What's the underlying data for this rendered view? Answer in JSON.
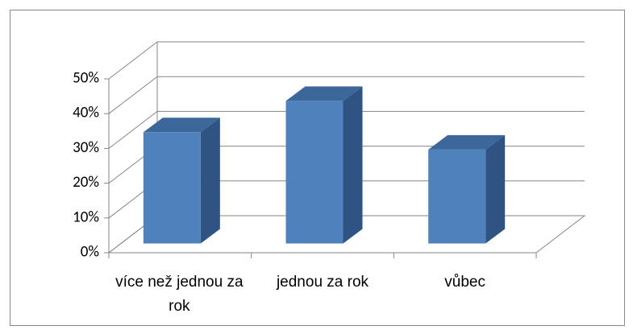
{
  "chart_data": {
    "type": "bar3d",
    "categories": [
      "více než jednou za rok",
      "jednou za rok",
      "vůbec"
    ],
    "values": [
      32,
      41,
      27
    ],
    "color": "#4f81bd",
    "ylim": [
      0,
      50
    ],
    "yticks": [
      {
        "value": 0,
        "label": "0%"
      },
      {
        "value": 10,
        "label": "10%"
      },
      {
        "value": 20,
        "label": "20%"
      },
      {
        "value": 30,
        "label": "30%"
      },
      {
        "value": 40,
        "label": "40%"
      },
      {
        "value": 50,
        "label": "50%"
      }
    ],
    "grid": true
  }
}
